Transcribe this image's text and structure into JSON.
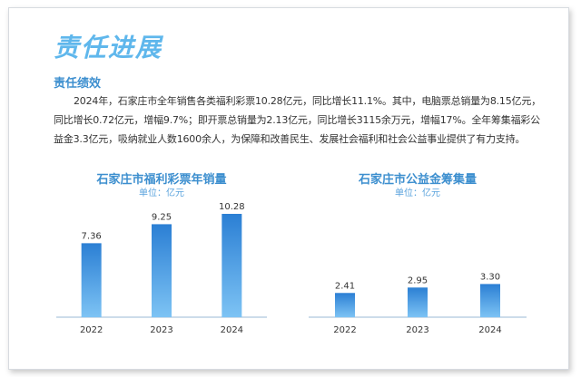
{
  "header": {
    "title": "责任进展"
  },
  "section": {
    "title": "责任绩效",
    "paragraph": "2024年，石家庄市全年销售各类福利彩票10.28亿元，同比增长11.1%。其中，电脑票总销量为8.15亿元，同比增长0.72亿元，增幅9.7%；即开票总销量为2.13亿元，同比增长3115余万元，增幅17%。全年筹集福彩公益金3.3亿元，吸纳就业人数1600余人，为保障和改善民生、发展社会福利和社会公益事业提供了有力支持。"
  },
  "colors": {
    "title": "#5fb7ec",
    "accent": "#3d8fcf",
    "bar_top": "#2b7fd4",
    "bar_bottom": "#7dc3f4"
  },
  "chart_data": [
    {
      "type": "bar",
      "title": "石家庄市福利彩票年销量",
      "unit": "单位：亿元",
      "categories": [
        "2022",
        "2023",
        "2024"
      ],
      "values": [
        7.36,
        9.25,
        10.28
      ],
      "value_labels": [
        "7.36",
        "9.25",
        "10.28"
      ],
      "ylim": [
        0,
        11
      ]
    },
    {
      "type": "bar",
      "title": "石家庄市公益金筹集量",
      "unit": "单位：亿元",
      "categories": [
        "2022",
        "2023",
        "2024"
      ],
      "values": [
        2.41,
        2.95,
        3.3
      ],
      "value_labels": [
        "2.41",
        "2.95",
        "3.30"
      ],
      "ylim": [
        0,
        11
      ]
    }
  ]
}
